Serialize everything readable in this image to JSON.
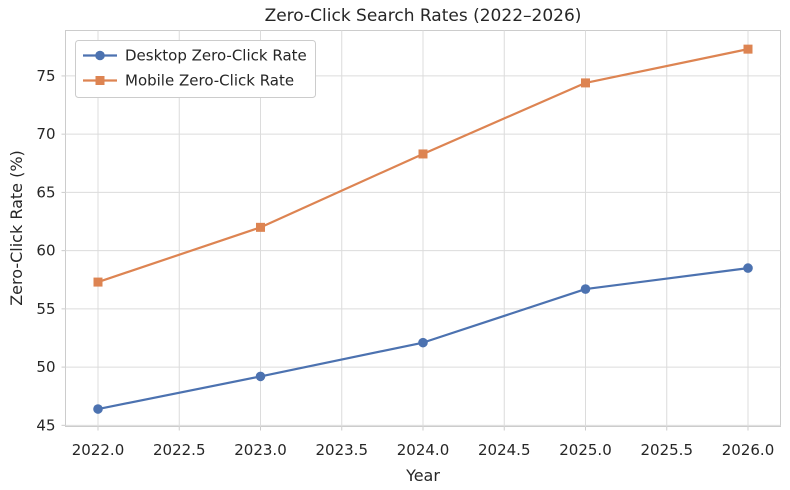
{
  "figure": {
    "background": "#ffffff",
    "grid_color": "#dcdcdc",
    "spine_color": "#cccccc",
    "tick_color": "#cccccc",
    "text_color": "#262626",
    "legend_border_color": "#cccccc",
    "legend_background": "#ffffff"
  },
  "chart_data": {
    "type": "line",
    "title": "Zero-Click Search Rates (2022–2026)",
    "xlabel": "Year",
    "ylabel": "Zero-Click Rate (%)",
    "x": [
      2022,
      2023,
      2024,
      2025,
      2026
    ],
    "series": [
      {
        "name": "Desktop Zero-Click Rate",
        "values": [
          46.4,
          49.2,
          52.1,
          56.7,
          58.5
        ],
        "color": "#4C72B0",
        "marker": "circle"
      },
      {
        "name": "Mobile Zero-Click Rate",
        "values": [
          57.3,
          62.0,
          68.3,
          74.4,
          77.3
        ],
        "color": "#DD8452",
        "marker": "square"
      }
    ],
    "xlim": [
      2021.8,
      2026.2
    ],
    "ylim": [
      44.9,
      78.9
    ],
    "x_ticks": [
      2022.0,
      2022.5,
      2023.0,
      2023.5,
      2024.0,
      2024.5,
      2025.0,
      2025.5,
      2026.0
    ],
    "x_tick_labels": [
      "2022.0",
      "2022.5",
      "2023.0",
      "2023.5",
      "2024.0",
      "2024.5",
      "2025.0",
      "2025.5",
      "2026.0"
    ],
    "y_ticks": [
      45,
      50,
      55,
      60,
      65,
      70,
      75
    ],
    "y_tick_labels": [
      "45",
      "50",
      "55",
      "60",
      "65",
      "70",
      "75"
    ],
    "grid": true,
    "legend_position": "upper left"
  }
}
